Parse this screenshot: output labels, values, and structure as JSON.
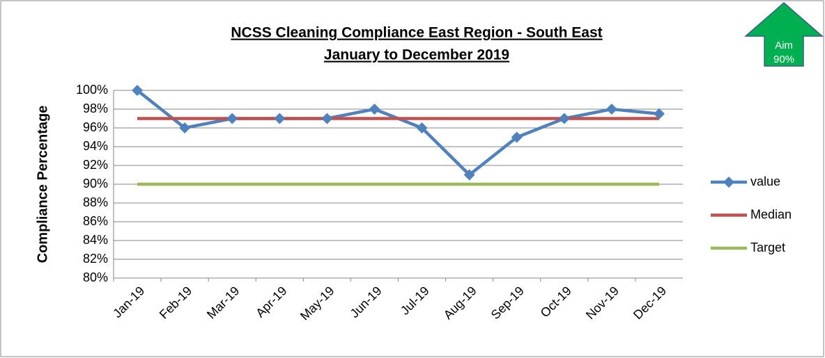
{
  "chart_data": {
    "type": "line",
    "title": [
      "NCSS Cleaning Compliance East Region - South East",
      "January to December 2019"
    ],
    "y_label": "Compliance Percentage",
    "annotations": [
      "Aim",
      "90%"
    ],
    "categories": [
      "Jan-19",
      "Feb-19",
      "Mar-19",
      "Apr-19",
      "May-19",
      "Jun-19",
      "Jul-19",
      "Aug-19",
      "Sep-19",
      "Oct-19",
      "Nov-19",
      "Dec-19"
    ],
    "series": [
      {
        "name": "value",
        "color": "#4f81bd",
        "marker": "diamond",
        "values": [
          100,
          96,
          97,
          97,
          97,
          98,
          96,
          91,
          95,
          97,
          98,
          97.5
        ]
      },
      {
        "name": "Median",
        "color": "#c0504d",
        "values": [
          97,
          97,
          97,
          97,
          97,
          97,
          97,
          97,
          97,
          97,
          97,
          97
        ]
      },
      {
        "name": "Target",
        "color": "#9bbb59",
        "values": [
          90,
          90,
          90,
          90,
          90,
          90,
          90,
          90,
          90,
          90,
          90,
          90
        ]
      }
    ],
    "ylim": [
      80,
      100
    ],
    "yticks": [
      {
        "value": 80,
        "label": "80%"
      },
      {
        "value": 82,
        "label": "82%"
      },
      {
        "value": 84,
        "label": "84%"
      },
      {
        "value": 86,
        "label": "86%"
      },
      {
        "value": 88,
        "label": "88%"
      },
      {
        "value": 90,
        "label": "90%"
      },
      {
        "value": 92,
        "label": "92%"
      },
      {
        "value": 94,
        "label": "94%"
      },
      {
        "value": 96,
        "label": "96%"
      },
      {
        "value": 98,
        "label": "98%"
      },
      {
        "value": 100,
        "label": "100%"
      }
    ],
    "grid": true,
    "legend": "right"
  }
}
